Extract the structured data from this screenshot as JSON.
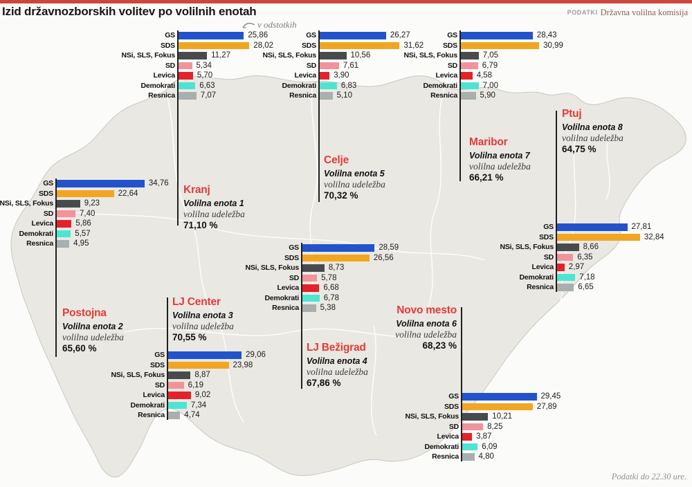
{
  "header": {
    "title": "Izid državnozborskih volitev po volilnih enotah",
    "source_prefix": "PODATKI",
    "source_name": "Državna volilna komisija",
    "unit_note": "v odstotkih",
    "footer_note": "Podatki do 22.30 ure."
  },
  "colors": {
    "top_bar": "#cd463c",
    "accent_red": "#e23b36",
    "connector_line": "#1f1f1f",
    "map_fill": "#eae8e3",
    "map_border": "#ffffff"
  },
  "party_colors": {
    "GS": "#2353cb",
    "SDS": "#f0a622",
    "NSi, SLS, Fokus": "#474b4e",
    "SD": "#f0939b",
    "Levica": "#e32229",
    "Demokrati": "#4de4d2",
    "Resnica": "#a9aeae"
  },
  "chart_data": [
    {
      "type": "bar",
      "city": "Kranj",
      "unit_label": "Volilna enota 1",
      "turnout_label": "volilna udeležba",
      "turnout": "71,10 %",
      "categories": [
        "GS",
        "SDS",
        "NSi, SLS, Fokus",
        "SD",
        "Levica",
        "Demokrati",
        "Resnica"
      ],
      "values": [
        25.86,
        28.02,
        11.27,
        5.34,
        5.7,
        6.63,
        7.07
      ],
      "display_values": [
        "25,86",
        "28,02",
        "11,27",
        "5,34",
        "5,70",
        "6,63",
        "7,07"
      ],
      "xlim": [
        0,
        40
      ]
    },
    {
      "type": "bar",
      "city": "Postojna",
      "unit_label": "Volilna enota 2",
      "turnout_label": "volilna udeležba",
      "turnout": "65,60 %",
      "categories": [
        "GS",
        "SDS",
        "NSi, SLS, Fokus",
        "SD",
        "Levica",
        "Demokrati",
        "Resnica"
      ],
      "values": [
        34.76,
        22.64,
        9.23,
        7.4,
        5.86,
        5.57,
        4.95
      ],
      "display_values": [
        "34,76",
        "22,64",
        "9,23",
        "7,40",
        "5,86",
        "5,57",
        "4,95"
      ],
      "xlim": [
        0,
        40
      ]
    },
    {
      "type": "bar",
      "city": "LJ Center",
      "unit_label": "Volilna enota 3",
      "turnout_label": "volilna udeležba",
      "turnout": "70,55 %",
      "categories": [
        "GS",
        "SDS",
        "NSi, SLS, Fokus",
        "SD",
        "Levica",
        "Demokrati",
        "Resnica"
      ],
      "values": [
        29.06,
        23.98,
        8.87,
        6.19,
        9.02,
        7.34,
        4.74
      ],
      "display_values": [
        "29,06",
        "23,98",
        "8,87",
        "6,19",
        "9,02",
        "7,34",
        "4,74"
      ],
      "xlim": [
        0,
        40
      ]
    },
    {
      "type": "bar",
      "city": "LJ Bežigrad",
      "unit_label": "Volilna enota 4",
      "turnout_label": "volilna udeležba",
      "turnout": "67,86 %",
      "categories": [
        "GS",
        "SDS",
        "NSi, SLS, Fokus",
        "SD",
        "Levica",
        "Demokrati",
        "Resnica"
      ],
      "values": [
        28.59,
        26.56,
        8.73,
        5.78,
        6.68,
        6.78,
        5.38
      ],
      "display_values": [
        "28,59",
        "26,56",
        "8,73",
        "5,78",
        "6,68",
        "6,78",
        "5,38"
      ],
      "xlim": [
        0,
        40
      ]
    },
    {
      "type": "bar",
      "city": "Celje",
      "unit_label": "Volilna enota 5",
      "turnout_label": "volilna udeležba",
      "turnout": "70,32 %",
      "categories": [
        "GS",
        "SDS",
        "NSi, SLS, Fokus",
        "SD",
        "Levica",
        "Demokrati",
        "Resnica"
      ],
      "values": [
        26.27,
        31.62,
        10.56,
        7.61,
        3.9,
        6.83,
        5.1
      ],
      "display_values": [
        "26,27",
        "31,62",
        "10,56",
        "7,61",
        "3,90",
        "6,83",
        "5,10"
      ],
      "xlim": [
        0,
        40
      ]
    },
    {
      "type": "bar",
      "city": "Novo mesto",
      "unit_label": "Volilna enota 6",
      "turnout_label": "volilna udeležba",
      "turnout": "68,23 %",
      "categories": [
        "GS",
        "SDS",
        "NSi, SLS, Fokus",
        "SD",
        "Levica",
        "Demokrati",
        "Resnica"
      ],
      "values": [
        29.45,
        27.89,
        10.21,
        8.25,
        3.87,
        6.09,
        4.8
      ],
      "display_values": [
        "29,45",
        "27,89",
        "10,21",
        "8,25",
        "3,87",
        "6,09",
        "4,80"
      ],
      "xlim": [
        0,
        40
      ]
    },
    {
      "type": "bar",
      "city": "Maribor",
      "unit_label": "Volilna enota 7",
      "turnout_label": "volilna udeležba",
      "turnout": "66,21 %",
      "categories": [
        "GS",
        "SDS",
        "NSi, SLS, Fokus",
        "SD",
        "Levica",
        "Demokrati",
        "Resnica"
      ],
      "values": [
        28.43,
        30.99,
        7.05,
        6.79,
        4.58,
        7.0,
        5.9
      ],
      "display_values": [
        "28,43",
        "30,99",
        "7,05",
        "6,79",
        "4,58",
        "7,00",
        "5,90"
      ],
      "xlim": [
        0,
        40
      ]
    },
    {
      "type": "bar",
      "city": "Ptuj",
      "unit_label": "Volilna enota 8",
      "turnout_label": "volilna udeležba",
      "turnout": "64,75 %",
      "categories": [
        "GS",
        "SDS",
        "NSi, SLS, Fokus",
        "SD",
        "Levica",
        "Demokrati",
        "Resnica"
      ],
      "values": [
        27.81,
        32.84,
        8.66,
        6.35,
        2.97,
        7.18,
        6.65
      ],
      "display_values": [
        "27,81",
        "32,84",
        "8,66",
        "6,35",
        "2,97",
        "7,18",
        "6,65"
      ],
      "xlim": [
        0,
        40
      ]
    }
  ]
}
